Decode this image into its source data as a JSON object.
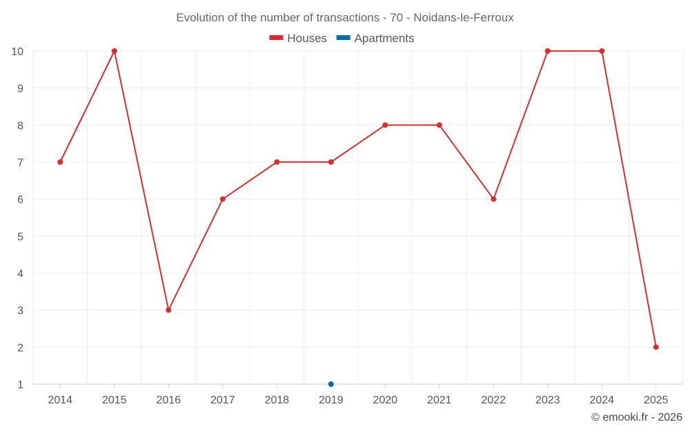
{
  "chart_data": {
    "type": "line",
    "title": "Evolution of the number of transactions - 70 - Noidans-le-Ferroux",
    "categories": [
      "2014",
      "2015",
      "2016",
      "2017",
      "2018",
      "2019",
      "2020",
      "2021",
      "2022",
      "2023",
      "2024",
      "2025"
    ],
    "ylim": [
      1,
      10
    ],
    "yticks": [
      1,
      2,
      3,
      4,
      5,
      6,
      7,
      8,
      9,
      10
    ],
    "grid": true,
    "legend_position": "top-center",
    "series": [
      {
        "name": "Houses",
        "color": "#d32f2f",
        "values": [
          7,
          10,
          3,
          6,
          7,
          7,
          8,
          8,
          6,
          10,
          10,
          2
        ]
      },
      {
        "name": "Apartments",
        "color": "#0a6aa1",
        "values": [
          null,
          null,
          null,
          null,
          null,
          1,
          null,
          null,
          null,
          null,
          null,
          null
        ]
      }
    ]
  },
  "credit": "© emooki.fr - 2026"
}
